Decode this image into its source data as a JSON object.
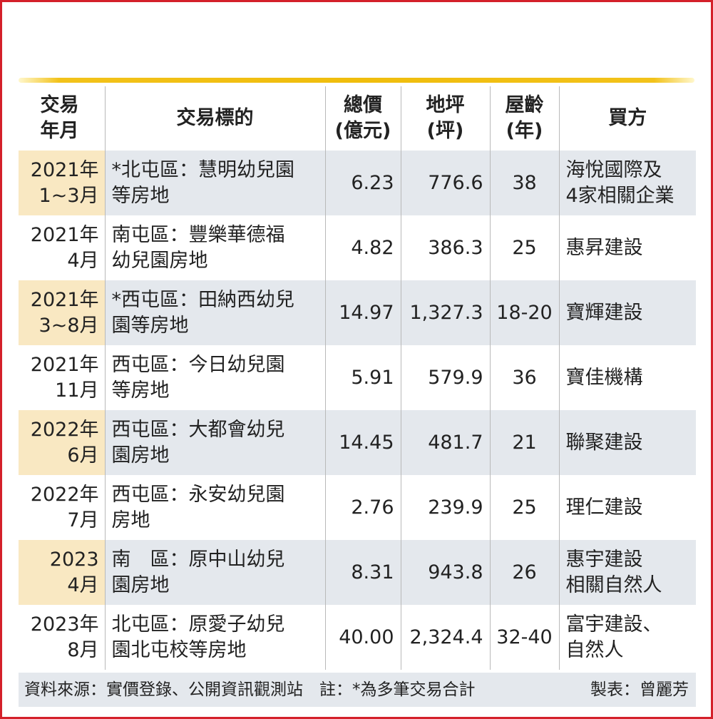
{
  "table": {
    "headers": {
      "date": [
        "交易",
        "年月"
      ],
      "target": "交易標的",
      "price": [
        "總價",
        "(億元)"
      ],
      "area": [
        "地坪",
        "(坪)"
      ],
      "age": [
        "屋齡",
        "(年)"
      ],
      "buyer": "買方"
    },
    "rows": [
      {
        "date": [
          "2021年",
          "1~3月"
        ],
        "target": [
          "*北屯區：慧明幼兒園",
          "等房地"
        ],
        "price": "6.23",
        "area": "776.6",
        "age": "38",
        "buyer": [
          "海悅國際及",
          "4家相關企業"
        ]
      },
      {
        "date": [
          "2021年",
          "4月"
        ],
        "target": [
          "南屯區：豐樂華德福",
          "幼兒園房地"
        ],
        "price": "4.82",
        "area": "386.3",
        "age": "25",
        "buyer": [
          "惠昇建設"
        ]
      },
      {
        "date": [
          "2021年",
          "3~8月"
        ],
        "target": [
          "*西屯區：田納西幼兒",
          "園等房地"
        ],
        "price": "14.97",
        "area": "1,327.3",
        "age": "18-20",
        "buyer": [
          "寶輝建設"
        ]
      },
      {
        "date": [
          "2021年",
          "11月"
        ],
        "target": [
          "西屯區：今日幼兒園",
          "等房地"
        ],
        "price": "5.91",
        "area": "579.9",
        "age": "36",
        "buyer": [
          "寶佳機構"
        ]
      },
      {
        "date": [
          "2022年",
          "6月"
        ],
        "target": [
          "西屯區：大都會幼兒",
          "園房地"
        ],
        "price": "14.45",
        "area": "481.7",
        "age": "21",
        "buyer": [
          "聯聚建設"
        ]
      },
      {
        "date": [
          "2022年",
          "7月"
        ],
        "target": [
          "西屯區：永安幼兒園",
          "房地"
        ],
        "price": "2.76",
        "area": "239.9",
        "age": "25",
        "buyer": [
          "理仁建設"
        ]
      },
      {
        "date": [
          "2023",
          "4月"
        ],
        "target": [
          "南　區：原中山幼兒",
          "園房地"
        ],
        "price": "8.31",
        "area": "943.8",
        "age": "26",
        "buyer": [
          "惠宇建設",
          "相關自然人"
        ]
      },
      {
        "date": [
          "2023年",
          "8月"
        ],
        "target": [
          "北屯區：原愛子幼兒",
          "園北屯校等房地"
        ],
        "price": "40.00",
        "area": "2,324.4",
        "age": "32-40",
        "buyer": [
          "富宇建設、",
          "自然人"
        ]
      }
    ]
  },
  "footer": {
    "source": "資料來源：實價登錄、公開資訊觀測站　註：*為多筆交易合計",
    "maker": "製表：曾麗芳"
  },
  "colors": {
    "frame": "#d4202a",
    "gold_rule": "#f0bd0c",
    "row_shade": "#e4e8ed",
    "date_shade": "#f9e8c2"
  }
}
